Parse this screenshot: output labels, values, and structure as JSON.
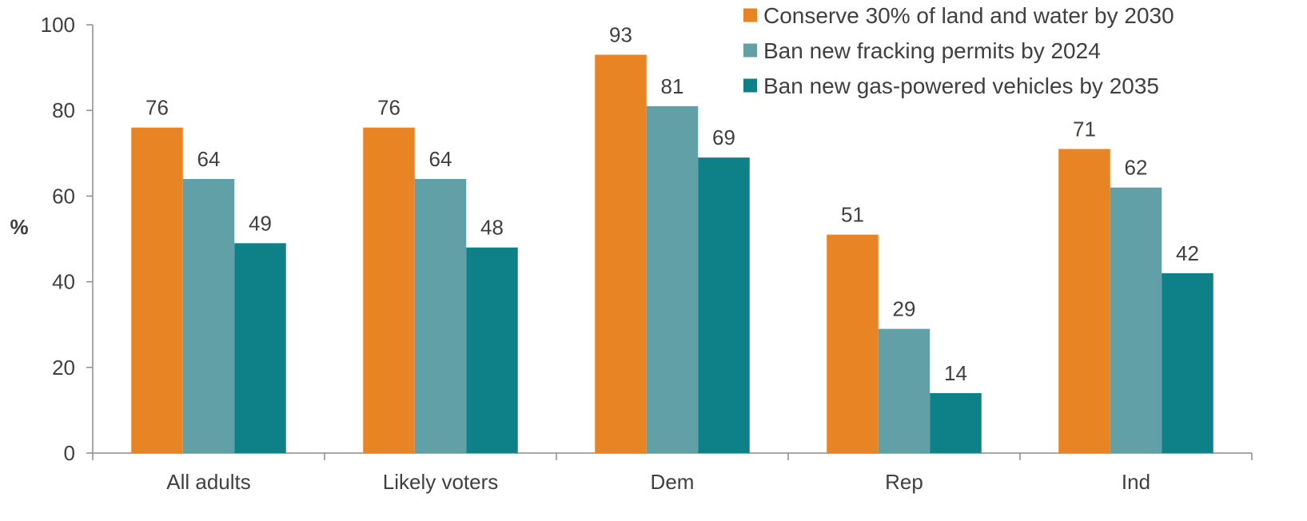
{
  "chart_data": {
    "type": "bar",
    "title": "",
    "xlabel": "",
    "ylabel": "%",
    "ylim": [
      0,
      100
    ],
    "yticks": [
      0,
      20,
      40,
      60,
      80,
      100
    ],
    "grid": false,
    "legend_position": "top-right",
    "categories": [
      "All adults",
      "Likely voters",
      "Dem",
      "Rep",
      "Ind"
    ],
    "series": [
      {
        "name": "Conserve 30% of land and water by 2030",
        "color": "#E98425",
        "values": [
          76,
          76,
          93,
          51,
          71
        ]
      },
      {
        "name": "Ban new fracking permits by 2024",
        "color": "#62A0A7",
        "values": [
          64,
          64,
          81,
          29,
          62
        ]
      },
      {
        "name": "Ban new gas-powered vehicles by 2035",
        "color": "#0E8088",
        "values": [
          49,
          48,
          69,
          14,
          42
        ]
      }
    ],
    "data_labels": true
  }
}
